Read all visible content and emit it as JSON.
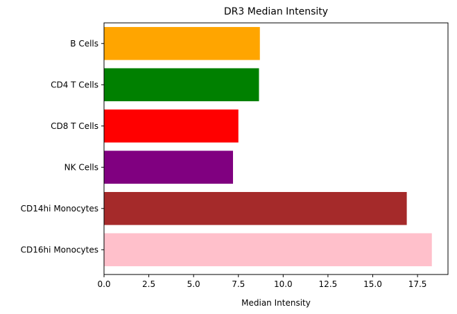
{
  "chart_data": {
    "type": "bar",
    "orientation": "horizontal",
    "title": "DR3 Median Intensity",
    "xlabel": "Median Intensity",
    "ylabel": "",
    "xlim": [
      0,
      19.2
    ],
    "x_ticks": [
      0,
      2.5,
      5,
      7.5,
      10,
      12.5,
      15,
      17.5
    ],
    "x_tick_labels": [
      "0.0",
      "2.5",
      "5.0",
      "7.5",
      "10.0",
      "12.5",
      "15.0",
      "17.5"
    ],
    "categories": [
      "B Cells",
      "CD4 T Cells",
      "CD8 T Cells",
      "NK Cells",
      "CD14hi Monocytes",
      "CD16hi Monocytes"
    ],
    "values": [
      8.7,
      8.65,
      7.5,
      7.2,
      16.9,
      18.3
    ],
    "colors": [
      "#ffa500",
      "#008000",
      "#ff0000",
      "#800080",
      "#a52a2a",
      "#ffc0cb"
    ],
    "grid": false,
    "legend": "none"
  }
}
